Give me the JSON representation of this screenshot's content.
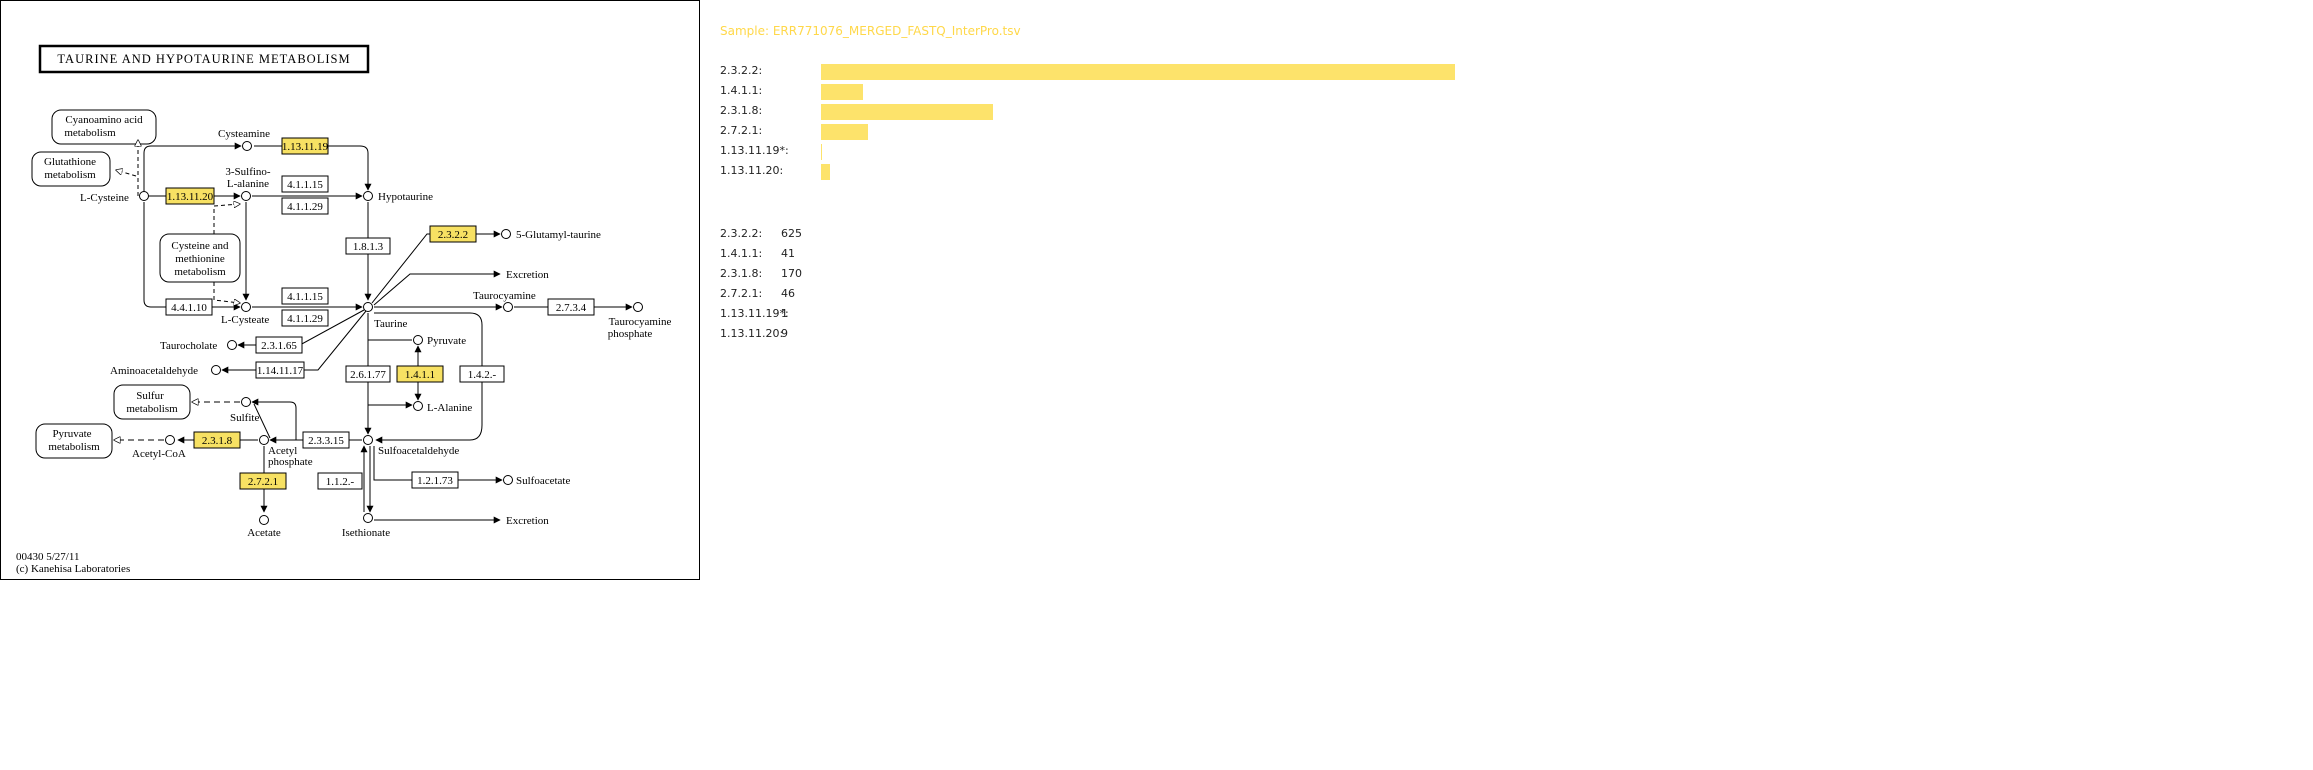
{
  "map": {
    "title": "TAURINE AND HYPOTAURINE METABOLISM",
    "footer_id": "00430 5/27/11",
    "footer_copyright": "(c) Kanehisa Laboratories",
    "enzyme_highlight_color": "#f7e163",
    "maps": {
      "cyanoamino": [
        "Cyanoamino acid",
        "metabolism"
      ],
      "glutathione": [
        "Glutathione",
        "metabolism"
      ],
      "cysteine": [
        "Cysteine and",
        "methionine",
        "metabolism"
      ],
      "sulfur": [
        "Sulfur",
        "metabolism"
      ],
      "pyruvate": [
        "Pyruvate",
        "metabolism"
      ]
    },
    "compounds": {
      "cysteamine": "Cysteamine",
      "sulfinoalanine": [
        "3-Sulfino-",
        "L-alanine"
      ],
      "lcysteine": "L-Cysteine",
      "hypotaurine": "Hypotaurine",
      "glutamyl": "5-Glutamyl-taurine",
      "excretion1": "Excretion",
      "taurocyamine": "Taurocyamine",
      "taurocyamine_p": [
        "Taurocyamine",
        "phosphate"
      ],
      "lcysteate": "L-Cysteate",
      "taurine": "Taurine",
      "taurocholate": "Taurocholate",
      "aminoacetaldehyde": "Aminoacetaldehyde",
      "pyruvate": "Pyruvate",
      "lalanine": "L-Alanine",
      "sulfite": "Sulfite",
      "acetylcoa": "Acetyl-CoA",
      "acetylp": [
        "Acetyl",
        "phosphate"
      ],
      "sulfoacetaldehyde": "Sulfoacetaldehyde",
      "sulfoacetate": "Sulfoacetate",
      "acetate": "Acetate",
      "isethionate": "Isethionate",
      "excretion2": "Excretion"
    },
    "enzymes": {
      "e_1131119": "1.13.11.19",
      "e_1131120": "1.13.11.20",
      "e_411151": "4.1.1.15",
      "e_411291": "4.1.1.29",
      "e_1813": "1.8.1.3",
      "e_2322": "2.3.2.2",
      "e_41110": "4.4.1.10",
      "e_411152": "4.1.1.15",
      "e_411292": "4.1.1.29",
      "e_2734": "2.7.3.4",
      "e_23165": "2.3.1.65",
      "e_1141117": "1.14.11.17",
      "e_26177": "2.6.1.77",
      "e_1411": "1.4.1.1",
      "e_142": "1.4.2.-",
      "e_2318": "2.3.1.8",
      "e_23315": "2.3.3.15",
      "e_2721": "2.7.2.1",
      "e_112": "1.1.2.-",
      "e_12173": "1.2.1.73"
    }
  },
  "panel": {
    "sample_title": "Sample: ERR771076_MERGED_FASTQ_InterPro.tsv",
    "bar_color": "#fde36b",
    "rows": [
      {
        "label": "2.3.2.2:",
        "value": 625
      },
      {
        "label": "1.4.1.1:",
        "value": 41
      },
      {
        "label": "2.3.1.8:",
        "value": 170
      },
      {
        "label": "2.7.2.1:",
        "value": 46
      },
      {
        "label": "1.13.11.19*:",
        "value": 1
      },
      {
        "label": "1.13.11.20:",
        "value": 9
      }
    ],
    "counts": [
      {
        "label": "2.3.2.2:",
        "count": "625"
      },
      {
        "label": "1.4.1.1:",
        "count": "41"
      },
      {
        "label": "2.3.1.8:",
        "count": "170"
      },
      {
        "label": "2.7.2.1:",
        "count": "46"
      },
      {
        "label": "1.13.11.19*:",
        "count": "1"
      },
      {
        "label": "1.13.11.20:",
        "count": "9"
      }
    ]
  }
}
